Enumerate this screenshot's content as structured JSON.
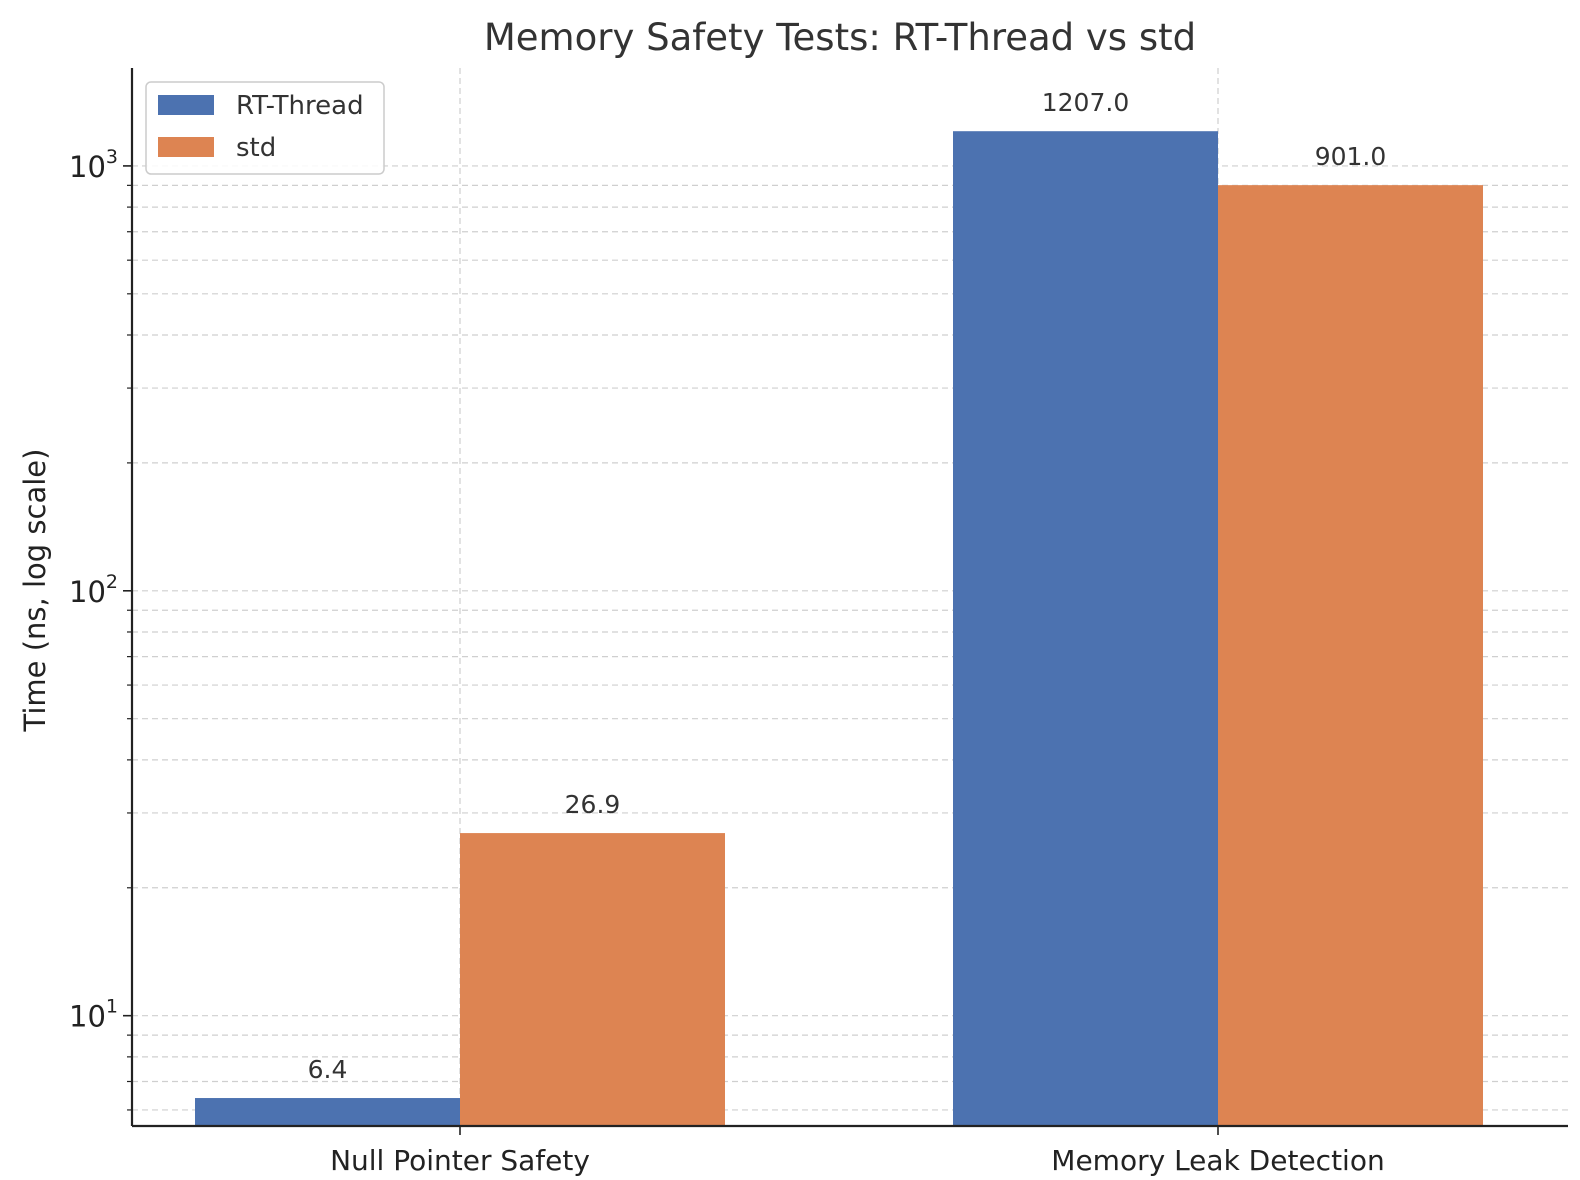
{
  "chart_data": {
    "type": "bar",
    "title": "Memory Safety Tests: RT-Thread vs std",
    "xlabel": "",
    "ylabel": "Time (ns, log scale)",
    "yscale": "log",
    "ylim": [
      5.5,
      1700
    ],
    "y_ticks": [
      {
        "value": 10,
        "base": "10",
        "exp": "1"
      },
      {
        "value": 100,
        "base": "10",
        "exp": "2"
      },
      {
        "value": 1000,
        "base": "10",
        "exp": "3"
      }
    ],
    "categories": [
      "Null Pointer Safety",
      "Memory Leak Detection"
    ],
    "series": [
      {
        "name": "RT-Thread",
        "color": "#4c72b0",
        "values": [
          6.4,
          1207.0
        ],
        "labels": [
          "6.4",
          "1207.0"
        ]
      },
      {
        "name": "std",
        "color": "#dd8452",
        "values": [
          26.9,
          901.0
        ],
        "labels": [
          "26.9",
          "901.0"
        ]
      }
    ],
    "grid": true,
    "legend_position": "top-left"
  }
}
